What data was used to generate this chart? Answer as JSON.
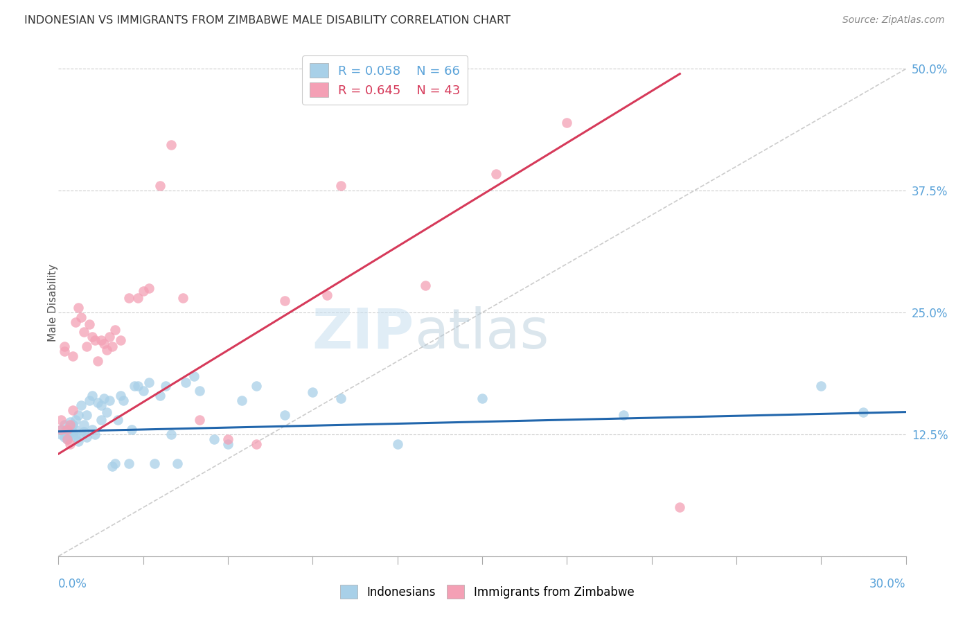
{
  "title": "INDONESIAN VS IMMIGRANTS FROM ZIMBABWE MALE DISABILITY CORRELATION CHART",
  "source": "Source: ZipAtlas.com",
  "ylabel": "Male Disability",
  "yticks": [
    0.0,
    0.125,
    0.25,
    0.375,
    0.5
  ],
  "ytick_labels": [
    "",
    "12.5%",
    "25.0%",
    "37.5%",
    "50.0%"
  ],
  "xmin": 0.0,
  "xmax": 0.3,
  "ymin": 0.0,
  "ymax": 0.52,
  "blue_color": "#a8d0e8",
  "pink_color": "#f4a0b5",
  "blue_line_color": "#2166ac",
  "pink_line_color": "#d63a5a",
  "diag_line_color": "#cccccc",
  "watermark_zip": "ZIP",
  "watermark_atlas": "atlas",
  "blue_line_x": [
    0.0,
    0.3
  ],
  "blue_line_y": [
    0.128,
    0.148
  ],
  "pink_line_x": [
    0.0,
    0.22
  ],
  "pink_line_y": [
    0.105,
    0.495
  ],
  "indonesians_x": [
    0.001,
    0.001,
    0.002,
    0.002,
    0.002,
    0.003,
    0.003,
    0.003,
    0.004,
    0.004,
    0.004,
    0.005,
    0.005,
    0.005,
    0.006,
    0.006,
    0.006,
    0.007,
    0.007,
    0.008,
    0.008,
    0.009,
    0.009,
    0.01,
    0.01,
    0.011,
    0.012,
    0.012,
    0.013,
    0.014,
    0.015,
    0.015,
    0.016,
    0.017,
    0.018,
    0.019,
    0.02,
    0.021,
    0.022,
    0.023,
    0.025,
    0.026,
    0.027,
    0.028,
    0.03,
    0.032,
    0.034,
    0.036,
    0.038,
    0.04,
    0.042,
    0.045,
    0.048,
    0.05,
    0.055,
    0.06,
    0.065,
    0.07,
    0.08,
    0.09,
    0.1,
    0.12,
    0.15,
    0.2,
    0.27,
    0.285
  ],
  "indonesians_y": [
    0.13,
    0.125,
    0.128,
    0.135,
    0.122,
    0.13,
    0.125,
    0.12,
    0.132,
    0.128,
    0.138,
    0.127,
    0.125,
    0.135,
    0.122,
    0.14,
    0.13,
    0.118,
    0.145,
    0.155,
    0.125,
    0.128,
    0.135,
    0.145,
    0.122,
    0.16,
    0.165,
    0.13,
    0.125,
    0.158,
    0.14,
    0.155,
    0.162,
    0.148,
    0.16,
    0.092,
    0.095,
    0.14,
    0.165,
    0.16,
    0.095,
    0.13,
    0.175,
    0.175,
    0.17,
    0.178,
    0.095,
    0.165,
    0.175,
    0.125,
    0.095,
    0.178,
    0.185,
    0.17,
    0.12,
    0.115,
    0.16,
    0.175,
    0.145,
    0.168,
    0.162,
    0.115,
    0.162,
    0.145,
    0.175,
    0.148
  ],
  "zimbabwe_x": [
    0.001,
    0.001,
    0.002,
    0.002,
    0.003,
    0.003,
    0.004,
    0.004,
    0.005,
    0.005,
    0.006,
    0.007,
    0.008,
    0.009,
    0.01,
    0.011,
    0.012,
    0.013,
    0.014,
    0.015,
    0.016,
    0.017,
    0.018,
    0.019,
    0.02,
    0.022,
    0.025,
    0.028,
    0.03,
    0.032,
    0.036,
    0.04,
    0.044,
    0.05,
    0.06,
    0.07,
    0.08,
    0.095,
    0.1,
    0.13,
    0.155,
    0.18,
    0.22
  ],
  "zimbabwe_y": [
    0.13,
    0.14,
    0.215,
    0.21,
    0.13,
    0.12,
    0.135,
    0.115,
    0.15,
    0.205,
    0.24,
    0.255,
    0.245,
    0.23,
    0.215,
    0.238,
    0.225,
    0.222,
    0.2,
    0.222,
    0.218,
    0.212,
    0.225,
    0.215,
    0.232,
    0.222,
    0.265,
    0.265,
    0.272,
    0.275,
    0.38,
    0.422,
    0.265,
    0.14,
    0.12,
    0.115,
    0.262,
    0.268,
    0.38,
    0.278,
    0.392,
    0.445,
    0.05
  ]
}
